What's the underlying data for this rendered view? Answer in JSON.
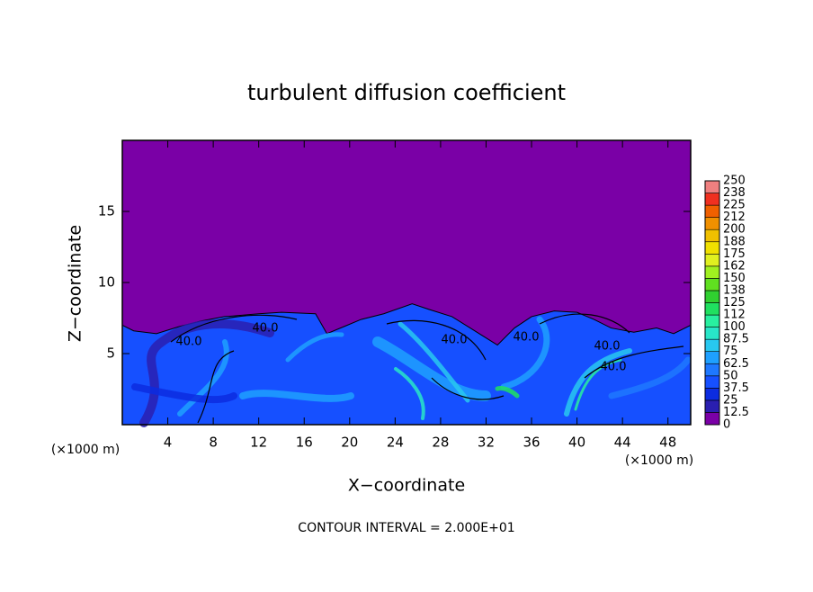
{
  "chart_data": {
    "type": "contour",
    "title": "turbulent diffusion coefficient",
    "x_label": "X−coordinate",
    "y_label": "Z−coordinate",
    "x_unit": "(×1000 m)",
    "x_unit_right": "(×1000 m)",
    "footer": "CONTOUR INTERVAL = 2.000E+01",
    "xlim": [
      0,
      50
    ],
    "xticks": [
      4,
      8,
      12,
      16,
      20,
      24,
      28,
      32,
      36,
      40,
      44,
      48
    ],
    "ylim": [
      0,
      20
    ],
    "yticks": [
      5,
      10,
      15
    ],
    "contour_labels": [
      "40.0",
      "40.0",
      "40.0",
      "40.0",
      "40.0",
      "40.0"
    ],
    "colorbar": {
      "ticks": [
        0,
        12.5,
        25,
        37.5,
        50,
        62.5,
        75,
        87.5,
        100,
        {
          "value": 112.5,
          "label": "112"
        },
        125,
        {
          "value": 137.5,
          "label": "138"
        },
        150,
        {
          "value": 162.5,
          "label": "162"
        },
        175,
        {
          "value": 187.5,
          "label": "188"
        },
        200,
        {
          "value": 212.5,
          "label": "212"
        },
        225,
        {
          "value": 237.5,
          "label": "238"
        },
        250
      ],
      "colors": [
        "#7a00a6",
        "#2a1fb0",
        "#0c2ce0",
        "#1650ff",
        "#1e78ff",
        "#1ea0ff",
        "#28c8f0",
        "#28e6c8",
        "#28f0a0",
        "#20e060",
        "#30d030",
        "#60e020",
        "#a0f020",
        "#e0f020",
        "#f0e000",
        "#f0c000",
        "#f09000",
        "#f06000",
        "#f03020",
        "#f08080"
      ]
    }
  }
}
